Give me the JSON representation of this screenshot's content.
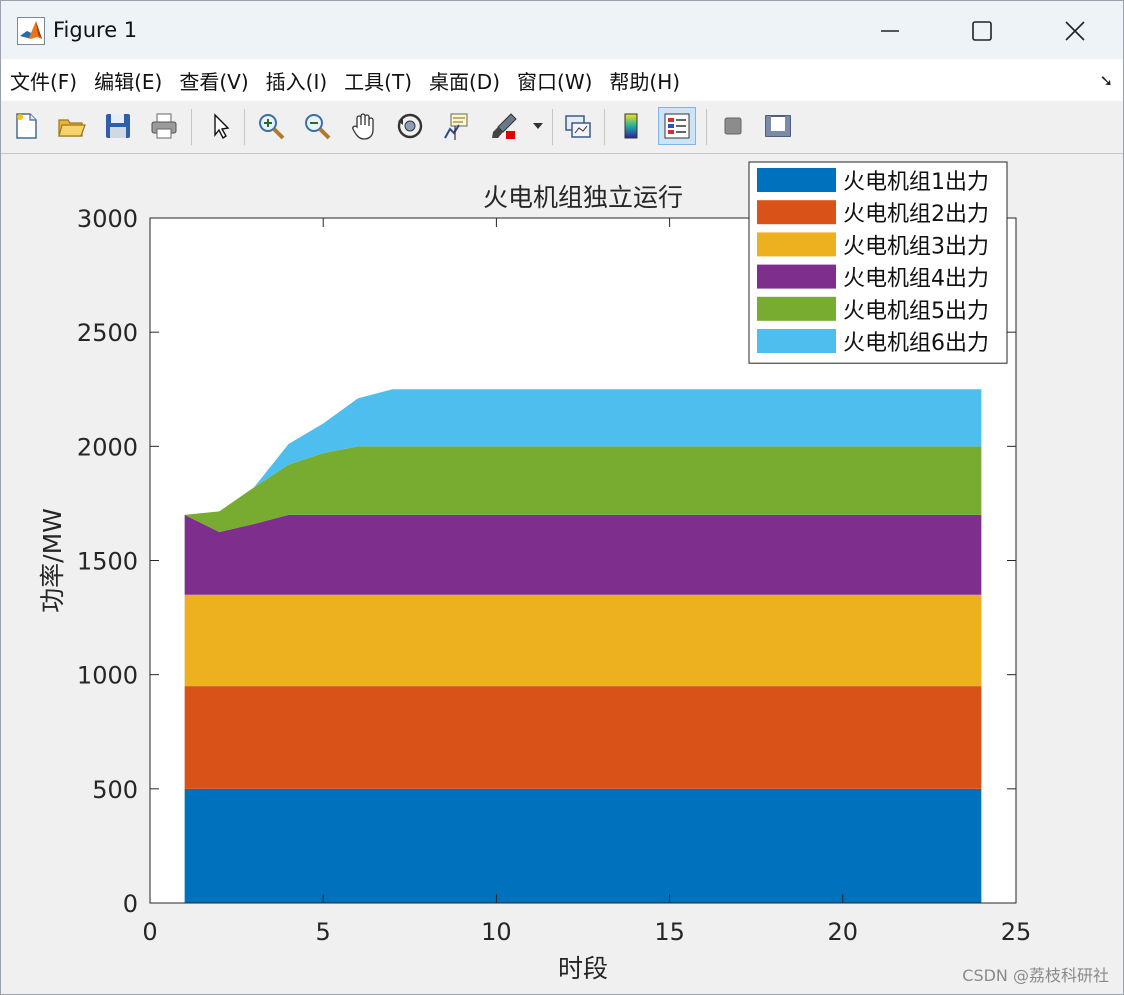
{
  "window": {
    "title": "Figure 1",
    "controls": [
      "minimize-icon",
      "maximize-icon",
      "close-icon"
    ]
  },
  "menubar": {
    "items": [
      "文件(F)",
      "编辑(E)",
      "查看(V)",
      "插入(I)",
      "工具(T)",
      "桌面(D)",
      "窗口(W)",
      "帮助(H)"
    ],
    "expand_icon": "dock-arrow-icon"
  },
  "toolbar": {
    "buttons": [
      "new-figure-icon",
      "open-file-icon",
      "save-icon",
      "print-icon",
      "edit-plot-arrow-icon",
      "zoom-in-icon",
      "zoom-out-icon",
      "pan-hand-icon",
      "rotate-3d-icon",
      "data-cursor-icon",
      "brush-icon",
      "brush-dropdown-icon",
      "link-plot-icon",
      "colorbar-icon",
      "legend-icon",
      "hide-plot-tools-icon",
      "show-plot-tools-icon"
    ]
  },
  "chart_data": {
    "type": "area",
    "stacked": true,
    "title": "火电机组独立运行",
    "xlabel": "时段",
    "ylabel": "功率/MW",
    "xlim": [
      0,
      25
    ],
    "ylim": [
      0,
      3000
    ],
    "xticks": [
      0,
      5,
      10,
      15,
      20,
      25
    ],
    "xtick_labels": [
      "0",
      "5",
      "10",
      "15",
      "20",
      "25"
    ],
    "yticks": [
      0,
      500,
      1000,
      1500,
      2000,
      2500,
      3000
    ],
    "ytick_labels": [
      "0",
      "500",
      "1000",
      "1500",
      "2000",
      "2500",
      "3000"
    ],
    "legend_position": "top-right",
    "x": [
      1,
      2,
      3,
      4,
      5,
      6,
      7,
      8,
      9,
      10,
      11,
      12,
      13,
      14,
      15,
      16,
      17,
      18,
      19,
      20,
      21,
      22,
      23,
      24
    ],
    "series": [
      {
        "name": "火电机组1出力",
        "color": "#0072BD",
        "values": [
          500,
          500,
          500,
          500,
          500,
          500,
          500,
          500,
          500,
          500,
          500,
          500,
          500,
          500,
          500,
          500,
          500,
          500,
          500,
          500,
          500,
          500,
          500,
          500
        ]
      },
      {
        "name": "火电机组2出力",
        "color": "#D95319",
        "values": [
          450,
          450,
          450,
          450,
          450,
          450,
          450,
          450,
          450,
          450,
          450,
          450,
          450,
          450,
          450,
          450,
          450,
          450,
          450,
          450,
          450,
          450,
          450,
          450
        ]
      },
      {
        "name": "火电机组3出力",
        "color": "#EDB120",
        "values": [
          400,
          400,
          400,
          400,
          400,
          400,
          400,
          400,
          400,
          400,
          400,
          400,
          400,
          400,
          400,
          400,
          400,
          400,
          400,
          400,
          400,
          400,
          400,
          400
        ]
      },
      {
        "name": "火电机组4出力",
        "color": "#7E2F8E",
        "values": [
          350,
          275,
          310,
          350,
          350,
          350,
          350,
          350,
          350,
          350,
          350,
          350,
          350,
          350,
          350,
          350,
          350,
          350,
          350,
          350,
          350,
          350,
          350,
          350
        ]
      },
      {
        "name": "火电机组5出力",
        "color": "#77AC30",
        "values": [
          0,
          90,
          160,
          220,
          270,
          300,
          300,
          300,
          300,
          300,
          300,
          300,
          300,
          300,
          300,
          300,
          300,
          300,
          300,
          300,
          300,
          300,
          300,
          300
        ]
      },
      {
        "name": "火电机组6出力",
        "color": "#4DBEEE",
        "values": [
          0,
          0,
          0,
          90,
          130,
          210,
          250,
          250,
          250,
          250,
          250,
          250,
          250,
          250,
          250,
          250,
          250,
          250,
          250,
          250,
          250,
          250,
          250,
          250
        ]
      }
    ]
  },
  "watermark": "CSDN @荔枝科研社"
}
